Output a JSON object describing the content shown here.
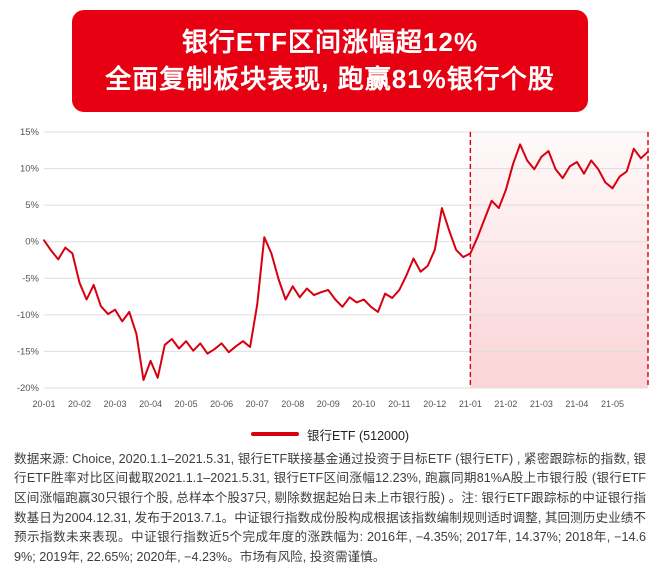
{
  "banner": {
    "line1": "银行ETF区间涨幅超12%",
    "line2": "全面复制板块表现, 跑赢81%银行个股",
    "bg_color": "#e60012",
    "text_color": "#ffffff"
  },
  "chart_data": {
    "type": "line",
    "title": "",
    "xlabel": "",
    "ylabel": "",
    "x_range": [
      0,
      17
    ],
    "ylim": [
      -20,
      15
    ],
    "yticks": [
      15,
      10,
      5,
      0,
      -5,
      -10,
      -15,
      -20
    ],
    "ytick_labels": [
      "15%",
      "10%",
      "5%",
      "0%",
      "-5%",
      "-10%",
      "-15%",
      "-20%"
    ],
    "xtick_positions": [
      0,
      1,
      2,
      3,
      4,
      5,
      6,
      7,
      8,
      9,
      10,
      11,
      12,
      13,
      14,
      15,
      16
    ],
    "xtick_labels": [
      "20-01",
      "20-02",
      "20-03",
      "20-04",
      "20-05",
      "20-06",
      "20-07",
      "20-08",
      "20-09",
      "20-10",
      "20-11",
      "20-12",
      "21-01",
      "21-02",
      "21-03",
      "21-04",
      "21-05"
    ],
    "grid": true,
    "legend_position": "bottom",
    "highlight_band": {
      "x_start": 12,
      "x_end": 17,
      "color": "#e60012"
    },
    "series": [
      {
        "name": "银行ETF (512000)",
        "color": "#d7000f",
        "values": [
          0.2,
          -1.2,
          -2.4,
          -0.8,
          -1.6,
          -5.6,
          -7.9,
          -5.9,
          -8.8,
          -9.9,
          -9.3,
          -10.9,
          -9.6,
          -12.6,
          -18.9,
          -16.3,
          -18.6,
          -14.1,
          -13.3,
          -14.6,
          -13.6,
          -14.9,
          -13.9,
          -15.3,
          -14.7,
          -13.9,
          -15.1,
          -14.3,
          -13.6,
          -14.4,
          -8.6,
          0.6,
          -1.6,
          -5.1,
          -7.9,
          -6.1,
          -7.6,
          -6.4,
          -7.3,
          -6.9,
          -6.6,
          -7.9,
          -8.9,
          -7.6,
          -8.3,
          -7.9,
          -8.9,
          -9.6,
          -7.1,
          -7.7,
          -6.6,
          -4.6,
          -2.3,
          -4.1,
          -3.3,
          -1.1,
          4.6,
          1.6,
          -1.1,
          -2.1,
          -1.6,
          0.6,
          3.1,
          5.6,
          4.6,
          7.1,
          10.6,
          13.3,
          11.1,
          9.9,
          11.6,
          12.4,
          9.9,
          8.7,
          10.3,
          10.9,
          9.3,
          11.1,
          9.9,
          8.1,
          7.3,
          8.9,
          9.6,
          12.7,
          11.4,
          12.3
        ]
      }
    ]
  },
  "legend": {
    "label": "银行ETF (512000)",
    "marker_color": "#d7000f"
  },
  "footnote": {
    "text": "数据来源: Choice, 2020.1.1–2021.5.31, 银行ETF联接基金通过投资于目标ETF (银行ETF) , 紧密跟踪标的指数, 银行ETF胜率对比区间截取2021.1.1–2021.5.31, 银行ETF区间涨幅12.23%, 跑赢同期81%A股上市银行股 (银行ETF区间涨幅跑赢30只银行个股, 总样本个股37只, 剔除数据起始日未上市银行股) 。注: 银行ETF跟踪标的中证银行指数基日为2004.12.31, 发布于2013.7.1。中证银行指数成份股构成根据该指数编制规则适时调整, 其回测历史业绩不预示指数未来表现。中证银行指数近5个完成年度的涨跌幅为: 2016年, −4.35%; 2017年, 14.37%; 2018年, −14.69%; 2019年, 22.65%; 2020年, −4.23%。市场有风险, 投资需谨慎。"
  }
}
